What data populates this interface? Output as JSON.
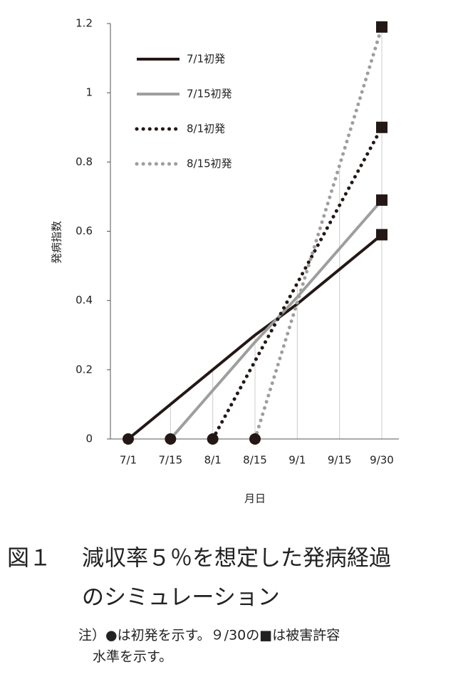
{
  "chart_data": {
    "type": "line",
    "y_label": "発病指数",
    "x_label": "月日",
    "categories": [
      "7/1",
      "7/15",
      "8/1",
      "8/15",
      "9/1",
      "9/15",
      "9/30"
    ],
    "series": [
      {
        "name": "7/1初発",
        "color": "#231815",
        "line_style": "solid",
        "values": [
          0,
          0.1,
          0.2,
          0.3,
          0.39,
          0.49,
          0.59
        ]
      },
      {
        "name": "7/15初発",
        "color": "#9e9e9e",
        "line_style": "solid",
        "values": [
          null,
          0,
          0.14,
          0.28,
          0.41,
          0.55,
          0.69
        ]
      },
      {
        "name": "8/1初発",
        "color": "#231815",
        "line_style": "dotted",
        "values": [
          null,
          null,
          0,
          0.225,
          0.45,
          0.675,
          0.9
        ]
      },
      {
        "name": "8/15初発",
        "color": "#9e9e9e",
        "line_style": "dotted",
        "values": [
          null,
          null,
          null,
          0,
          0.395,
          0.79,
          1.19
        ]
      }
    ],
    "ylim": [
      0,
      1.2
    ],
    "yticks": [
      0,
      0.2,
      0.4,
      0.6,
      0.8,
      1,
      1.2
    ],
    "legend": "upper-left",
    "caption_label": "図１",
    "caption_lines": [
      "減収率５％を想定した発病経過",
      "のシミュレーション"
    ],
    "note_lines": [
      "注）●は初発を示す。９/30の■は被害許容",
      "水準を示す。"
    ]
  }
}
